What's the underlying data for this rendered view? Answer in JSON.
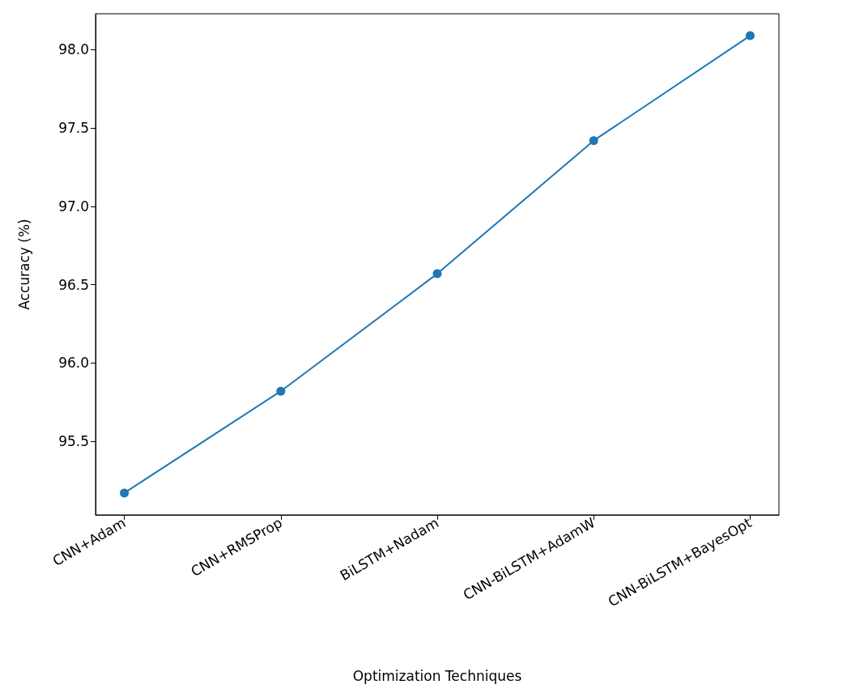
{
  "chart_data": {
    "type": "line",
    "xlabel": "Optimization Techniques",
    "ylabel": "Accuracy (%)",
    "categories": [
      "CNN+Adam",
      "CNN+RMSProp",
      "BiLSTM+Nadam",
      "CNN-BiLSTM+AdamW",
      "CNN-BiLSTM+BayesOpt"
    ],
    "series": [
      {
        "color": "#1f77b4",
        "values": [
          95.17,
          95.82,
          96.57,
          97.42,
          98.09
        ]
      }
    ],
    "ylim": [
      95.03,
      98.23
    ],
    "yticks": [
      95.5,
      {
        "value": 96,
        "label": "96.0"
      },
      96.5,
      {
        "value": 97,
        "label": "97.0"
      },
      97.5,
      {
        "value": 98,
        "label": "98.0"
      }
    ],
    "marker": "circle",
    "line_style": "solid"
  }
}
